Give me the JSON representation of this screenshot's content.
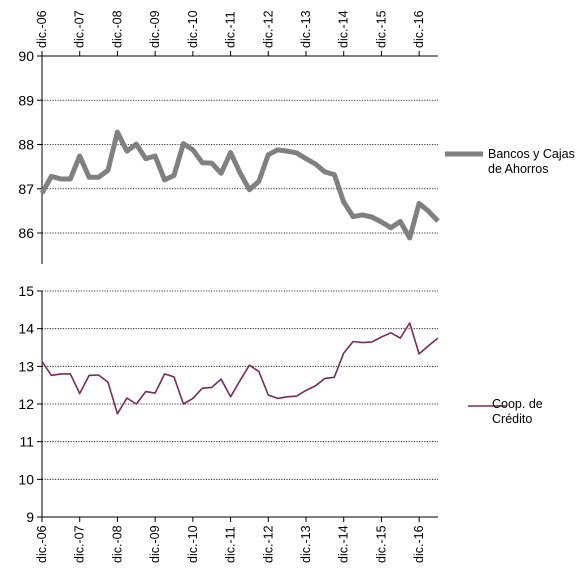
{
  "chart_data": [
    {
      "type": "line",
      "x_tick_labels": [
        "dic.-06",
        "dic.-07",
        "dic.-08",
        "dic.-09",
        "dic.-10",
        "dic.-11",
        "dic.-12",
        "dic.-13",
        "dic.-14",
        "dic.-15",
        "dic.-16"
      ],
      "x_axis_position": "top",
      "ylim": [
        85.3,
        90
      ],
      "y_ticks": [
        86,
        87,
        88,
        89,
        90
      ],
      "grid": true,
      "legend_position": "right",
      "series": [
        {
          "name": "Bancos y Cajas de Ahorros",
          "color": "#808080",
          "values": [
            86.9,
            87.28,
            87.22,
            87.22,
            87.74,
            87.26,
            87.26,
            87.42,
            88.28,
            87.85,
            88.01,
            87.68,
            87.74,
            87.2,
            87.3,
            88.02,
            87.88,
            87.59,
            87.58,
            87.35,
            87.82,
            87.36,
            86.98,
            87.17,
            87.77,
            87.88,
            87.85,
            87.81,
            87.68,
            87.56,
            87.38,
            87.32,
            86.7,
            86.37,
            86.41,
            86.36,
            86.25,
            86.12,
            86.26,
            85.89,
            86.67,
            86.49,
            86.27
          ]
        }
      ]
    },
    {
      "type": "line",
      "x_tick_labels": [
        "dic.-06",
        "dic.-07",
        "dic.-08",
        "dic.-09",
        "dic.-10",
        "dic.-11",
        "dic.-12",
        "dic.-13",
        "dic.-14",
        "dic.-15",
        "dic.-16"
      ],
      "x_axis_position": "bottom",
      "ylim": [
        9,
        15
      ],
      "y_ticks": [
        9,
        10,
        11,
        12,
        13,
        14,
        15
      ],
      "grid": true,
      "legend_position": "right",
      "series": [
        {
          "name": "Coop. de Crédito",
          "color": "#7a2a5c",
          "values": [
            13.13,
            12.76,
            12.8,
            12.8,
            12.28,
            12.76,
            12.77,
            12.58,
            11.74,
            12.16,
            12.0,
            12.33,
            12.29,
            12.8,
            12.72,
            12.0,
            12.15,
            12.42,
            12.44,
            12.66,
            12.19,
            12.62,
            13.03,
            12.86,
            12.24,
            12.15,
            12.19,
            12.21,
            12.36,
            12.48,
            12.68,
            12.71,
            13.35,
            13.66,
            13.63,
            13.65,
            13.78,
            13.89,
            13.75,
            14.15,
            13.33,
            13.55,
            13.75
          ]
        }
      ]
    }
  ]
}
